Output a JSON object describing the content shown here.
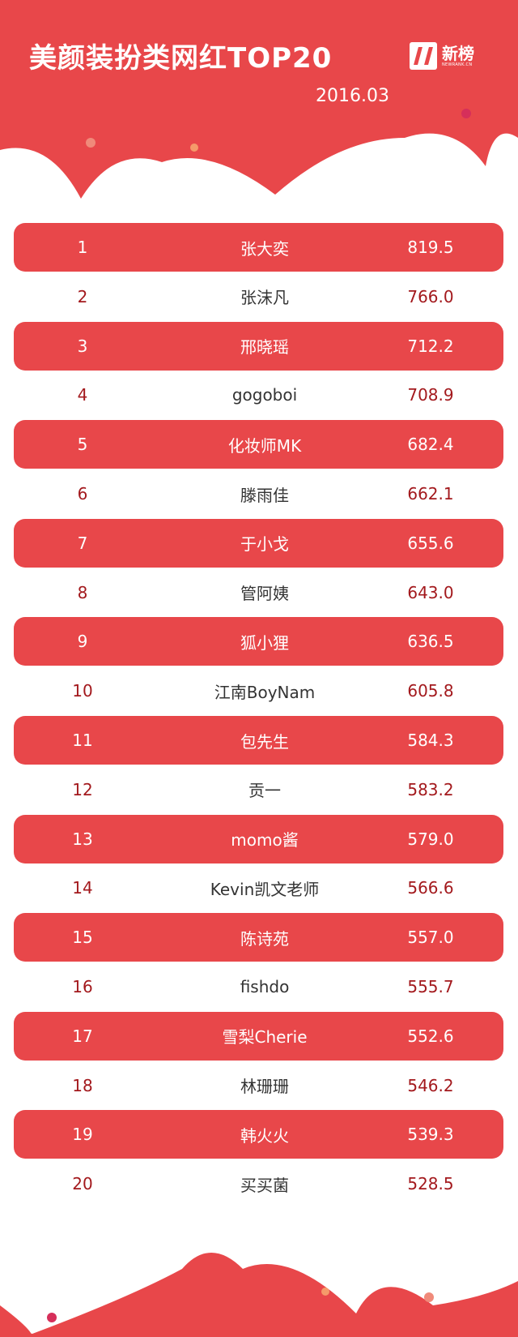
{
  "header": {
    "title": "美颜装扮类网红TOP20",
    "date": "2016.03",
    "logo_text": "新榜",
    "logo_subtext": "NEWRANK.CN"
  },
  "colors": {
    "brand_red": "#e8474a",
    "dark_red_text": "#a3191d",
    "name_text": "#333333"
  },
  "watermark": "新榜",
  "ranking": [
    {
      "rank": "1",
      "name": "张大奕",
      "score": "819.5"
    },
    {
      "rank": "2",
      "name": "张沫凡",
      "score": "766.0"
    },
    {
      "rank": "3",
      "name": "邢晓瑶",
      "score": "712.2"
    },
    {
      "rank": "4",
      "name": "gogoboi",
      "score": "708.9"
    },
    {
      "rank": "5",
      "name": "化妆师MK",
      "score": "682.4"
    },
    {
      "rank": "6",
      "name": "滕雨佳",
      "score": "662.1"
    },
    {
      "rank": "7",
      "name": "于小戈",
      "score": "655.6"
    },
    {
      "rank": "8",
      "name": "管阿姨",
      "score": "643.0"
    },
    {
      "rank": "9",
      "name": "狐小狸",
      "score": "636.5"
    },
    {
      "rank": "10",
      "name": "江南BoyNam",
      "score": "605.8"
    },
    {
      "rank": "11",
      "name": "包先生",
      "score": "584.3"
    },
    {
      "rank": "12",
      "name": "贡一",
      "score": "583.2"
    },
    {
      "rank": "13",
      "name": "momo酱",
      "score": "579.0"
    },
    {
      "rank": "14",
      "name": "Kevin凯文老师",
      "score": "566.6"
    },
    {
      "rank": "15",
      "name": "陈诗苑",
      "score": "557.0"
    },
    {
      "rank": "16",
      "name": "fishdo",
      "score": "555.7"
    },
    {
      "rank": "17",
      "name": "雪梨Cherie",
      "score": "552.6"
    },
    {
      "rank": "18",
      "name": "林珊珊",
      "score": "546.2"
    },
    {
      "rank": "19",
      "name": "韩火火",
      "score": "539.3"
    },
    {
      "rank": "20",
      "name": "买买菌",
      "score": "528.5"
    }
  ]
}
